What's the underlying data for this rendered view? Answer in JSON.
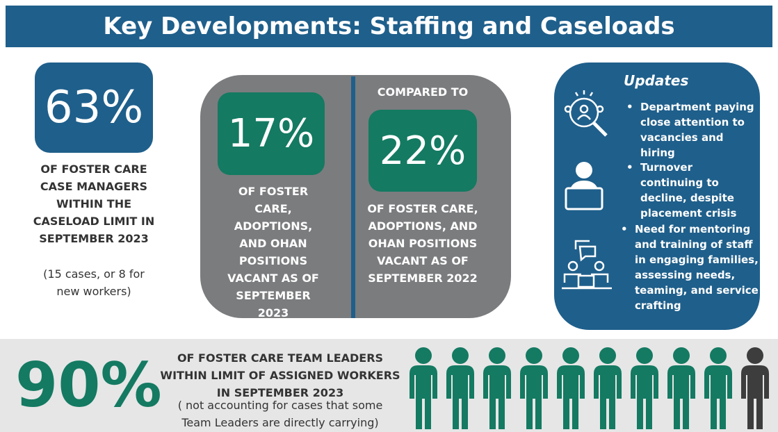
{
  "title": "Key Developments: Staffing and Caseloads",
  "case_managers": {
    "value": "63%",
    "description": "OF FOSTER CARE CASE MANAGERS WITHIN THE CASELOAD LIMIT IN SEPTEMBER 2023",
    "note": "(15 cases, or 8 for new workers)"
  },
  "vacancies": {
    "current": {
      "value": "17%",
      "description": "OF FOSTER CARE, ADOPTIONS, AND OHAN POSITIONS VACANT AS OF SEPTEMBER 2023"
    },
    "comparison_label": "COMPARED TO",
    "previous": {
      "value": "22%",
      "description": "OF FOSTER CARE, ADOPTIONS, AND OHAN POSITIONS VACANT AS OF SEPTEMBER 2022"
    }
  },
  "updates": {
    "heading": "Updates",
    "items": [
      "Department paying close attention to vacancies and hiring",
      "Turnover continuing to decline, despite placement crisis",
      "Need for mentoring and training of staff in engaging families, assessing  needs, teaming, and service crafting"
    ]
  },
  "team_leaders": {
    "value": "90%",
    "description": "OF FOSTER CARE TEAM LEADERS WITHIN LIMIT OF ASSIGNED WORKERS IN SEPTEMBER 2023",
    "note": "( not accounting for cases that some Team Leaders are directly carrying)"
  }
}
